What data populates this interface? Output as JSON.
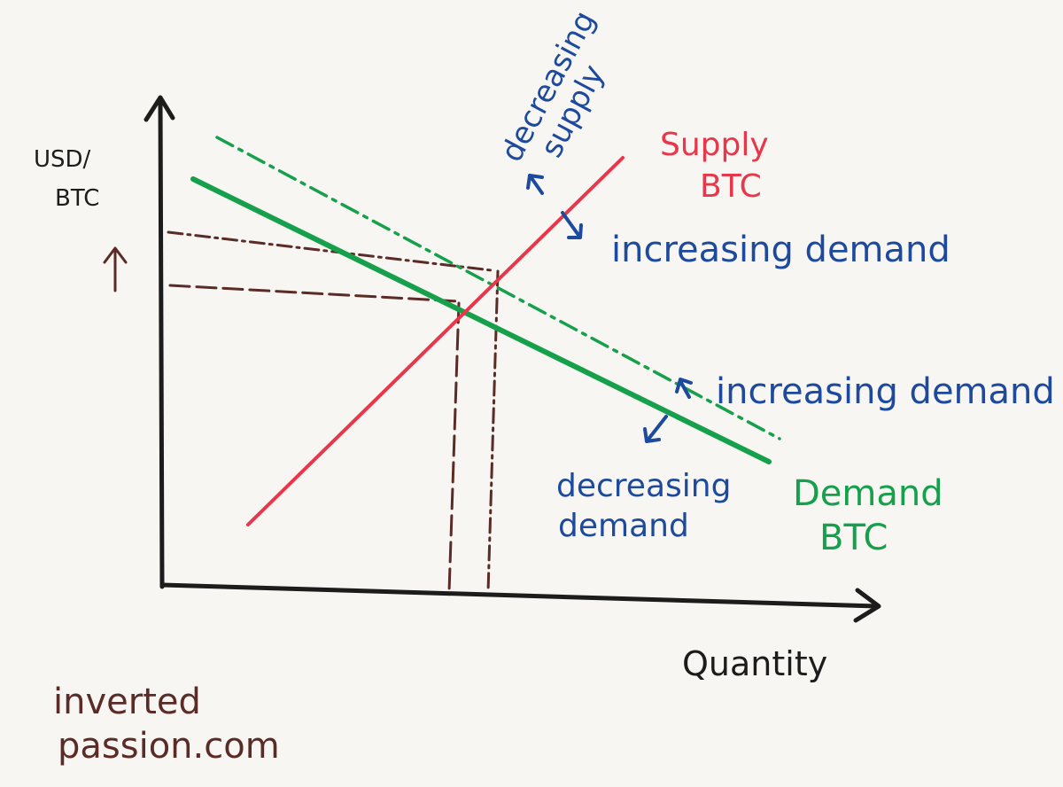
{
  "axes": {
    "y_label": [
      "USD/",
      "BTC"
    ],
    "x_label": "Quantity"
  },
  "curves": {
    "supply": [
      "Supply",
      "BTC"
    ],
    "demand": [
      "Demand",
      "BTC"
    ]
  },
  "annotations": {
    "decreasing_supply": [
      "decreasing",
      "supply"
    ],
    "increasing_demand_upper": "increasing demand",
    "increasing_demand_lower": "increasing demand",
    "decreasing_demand": [
      "decreasing",
      "demand"
    ]
  },
  "footer": [
    "inverted",
    "passion.com"
  ]
}
